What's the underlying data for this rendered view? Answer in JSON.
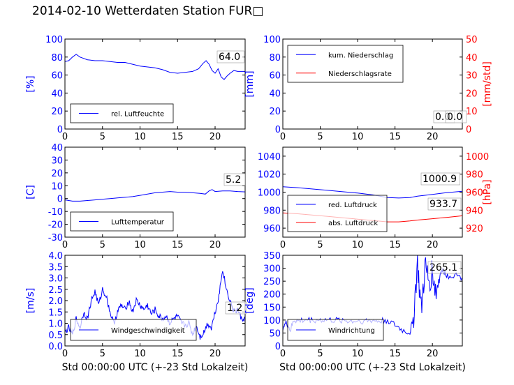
{
  "title": "2014-02-10 Wetterdaten Station FUR□",
  "colors": {
    "primary": "#0000ff",
    "secondary": "#ff0000",
    "axis": "#000000"
  },
  "chart_data": [
    {
      "type": "line",
      "xlim": [
        0,
        24
      ],
      "xticks": [
        0,
        5,
        10,
        15,
        20
      ],
      "ylabel": "[%]",
      "ylim": [
        0,
        100
      ],
      "yticks": [
        0,
        20,
        40,
        60,
        80,
        100
      ],
      "latest_label": "64.0",
      "legend": {
        "placement": "lower-left"
      },
      "series": [
        {
          "name": "rel. Luftfeuchte",
          "color": "#0000ff",
          "points": [
            [
              0,
              75
            ],
            [
              0.5,
              76
            ],
            [
              1,
              80
            ],
            [
              1.5,
              83
            ],
            [
              2,
              80
            ],
            [
              3,
              77
            ],
            [
              4,
              76
            ],
            [
              5,
              76
            ],
            [
              6,
              75
            ],
            [
              7,
              74
            ],
            [
              8,
              74
            ],
            [
              9,
              72
            ],
            [
              10,
              70
            ],
            [
              11,
              69
            ],
            [
              12,
              68
            ],
            [
              13,
              66
            ],
            [
              14,
              63
            ],
            [
              15,
              62
            ],
            [
              16,
              63
            ],
            [
              17,
              64
            ],
            [
              17.8,
              67
            ],
            [
              18.4,
              73
            ],
            [
              18.8,
              76
            ],
            [
              19.2,
              72
            ],
            [
              19.6,
              65
            ],
            [
              20,
              62
            ],
            [
              20.4,
              67
            ],
            [
              20.8,
              58
            ],
            [
              21.2,
              55
            ],
            [
              21.6,
              59
            ],
            [
              22,
              62
            ],
            [
              22.5,
              65
            ],
            [
              23,
              64
            ],
            [
              24,
              64
            ]
          ]
        }
      ]
    },
    {
      "type": "line",
      "xlim": [
        0,
        24
      ],
      "xticks": [
        0,
        5,
        10,
        15,
        20
      ],
      "ylabel": "[mm]",
      "ylim": [
        0,
        100
      ],
      "yticks": [
        0,
        20,
        40,
        60,
        80,
        100
      ],
      "ylabel_right": "[mm/std]",
      "ylim_right": [
        0,
        50
      ],
      "yticks_right": [
        0,
        10,
        20,
        30,
        40,
        50
      ],
      "latest_labels": [
        "0.0",
        "0.0"
      ],
      "legend": {
        "placement": "upper-left"
      },
      "series": [
        {
          "name": "kum. Niederschlag",
          "color": "#0000ff",
          "axis": "left",
          "points": [
            [
              0,
              0
            ],
            [
              24,
              0
            ]
          ]
        },
        {
          "name": "Niederschlagsrate",
          "color": "#ff0000",
          "axis": "right",
          "points": [
            [
              0,
              0
            ],
            [
              24,
              0
            ]
          ]
        }
      ]
    },
    {
      "type": "line",
      "xlim": [
        0,
        24
      ],
      "xticks": [
        0,
        5,
        10,
        15,
        20
      ],
      "ylabel": "[C]",
      "ylim": [
        -30,
        40
      ],
      "yticks": [
        -30,
        -20,
        -10,
        0,
        10,
        20,
        30,
        40
      ],
      "latest_label": "5.2",
      "legend": {
        "placement": "lower-left"
      },
      "series": [
        {
          "name": "Lufttemperatur",
          "color": "#0000ff",
          "points": [
            [
              0,
              -1
            ],
            [
              0.5,
              -1.5
            ],
            [
              1,
              -2
            ],
            [
              2,
              -2
            ],
            [
              3,
              -1.5
            ],
            [
              4,
              -1
            ],
            [
              5,
              -0.5
            ],
            [
              6,
              0
            ],
            [
              7,
              0.5
            ],
            [
              8,
              1
            ],
            [
              9,
              1.5
            ],
            [
              10,
              2.5
            ],
            [
              11,
              3.5
            ],
            [
              12,
              4.5
            ],
            [
              13,
              5
            ],
            [
              14,
              5.5
            ],
            [
              15,
              5
            ],
            [
              16,
              5
            ],
            [
              17,
              4.5
            ],
            [
              18,
              4
            ],
            [
              18.7,
              3.5
            ],
            [
              19.2,
              6
            ],
            [
              19.6,
              7
            ],
            [
              20,
              5.5
            ],
            [
              21,
              6
            ],
            [
              22,
              6
            ],
            [
              23,
              5.5
            ],
            [
              24,
              5.2
            ]
          ]
        }
      ]
    },
    {
      "type": "line",
      "xlim": [
        0,
        24
      ],
      "xticks": [
        0,
        5,
        10,
        15,
        20
      ],
      "ylim": [
        950,
        1050
      ],
      "yticks": [
        960,
        980,
        1000,
        1020,
        1040
      ],
      "ylabel_right": "[hPa]",
      "ylim_right": [
        910,
        1010
      ],
      "yticks_right": [
        920,
        940,
        960,
        980,
        1000
      ],
      "latest_labels": [
        "1000.9",
        "933.7"
      ],
      "legend": {
        "placement": "lower-left"
      },
      "series": [
        {
          "name": "red. Luftdruck",
          "color": "#0000ff",
          "axis": "left",
          "points": [
            [
              0,
              1006
            ],
            [
              2,
              1005
            ],
            [
              4,
              1003.5
            ],
            [
              6,
              1002
            ],
            [
              8,
              1000.5
            ],
            [
              10,
              999
            ],
            [
              12,
              997
            ],
            [
              14,
              994
            ],
            [
              15.5,
              993.5
            ],
            [
              17,
              994
            ],
            [
              18,
              995.5
            ],
            [
              20,
              997.5
            ],
            [
              22,
              999.5
            ],
            [
              24,
              1000.9
            ]
          ]
        },
        {
          "name": "abs. Luftdruck",
          "color": "#ff0000",
          "axis": "right",
          "points": [
            [
              0,
              937
            ],
            [
              2,
              936
            ],
            [
              4,
              934.5
            ],
            [
              6,
              933
            ],
            [
              8,
              931.5
            ],
            [
              10,
              930
            ],
            [
              12,
              928.5
            ],
            [
              14,
              927
            ],
            [
              15.5,
              927
            ],
            [
              17,
              928
            ],
            [
              18,
              929
            ],
            [
              20,
              930.5
            ],
            [
              22,
              932
            ],
            [
              24,
              933.7
            ]
          ]
        }
      ]
    },
    {
      "type": "line",
      "xlim": [
        0,
        24
      ],
      "xticks": [
        0,
        5,
        10,
        15,
        20
      ],
      "xlabel": "Std 00:00:00 UTC (+-23 Std Lokalzeit)",
      "ylabel": "[m/s]",
      "ylim": [
        0,
        4
      ],
      "yticks": [
        0.0,
        0.5,
        1.0,
        1.5,
        2.0,
        2.5,
        3.0,
        3.5,
        4.0
      ],
      "latest_label": "1.2",
      "legend": {
        "placement": "lower-center"
      },
      "series": [
        {
          "name": "Windgeschwindigkeit",
          "color": "#0000ff",
          "noisy": true,
          "points": [
            [
              0,
              0.6
            ],
            [
              0.5,
              0.8
            ],
            [
              1,
              0.5
            ],
            [
              1.5,
              1.2
            ],
            [
              2,
              0.8
            ],
            [
              2.5,
              1.5
            ],
            [
              3,
              1.2
            ],
            [
              3.5,
              2.0
            ],
            [
              4,
              2.4
            ],
            [
              4.5,
              1.8
            ],
            [
              5,
              2.5
            ],
            [
              5.5,
              2.2
            ],
            [
              6,
              1.5
            ],
            [
              6.5,
              1.0
            ],
            [
              7,
              1.5
            ],
            [
              7.5,
              1.8
            ],
            [
              8,
              1.6
            ],
            [
              8.5,
              2.0
            ],
            [
              9,
              1.5
            ],
            [
              9.5,
              2.0
            ],
            [
              10,
              1.8
            ],
            [
              10.5,
              1.6
            ],
            [
              11,
              1.8
            ],
            [
              11.5,
              1.4
            ],
            [
              12,
              1.6
            ],
            [
              12.5,
              1.3
            ],
            [
              13,
              1.2
            ],
            [
              13.5,
              1.3
            ],
            [
              14,
              1.0
            ],
            [
              14.5,
              1.2
            ],
            [
              15,
              1.3
            ],
            [
              15.5,
              1.0
            ],
            [
              16,
              0.9
            ],
            [
              16.5,
              1.0
            ],
            [
              17,
              0.5
            ],
            [
              17.5,
              0.9
            ],
            [
              18,
              0.4
            ],
            [
              18.5,
              0.6
            ],
            [
              19,
              1.0
            ],
            [
              19.5,
              0.8
            ],
            [
              20,
              1.5
            ],
            [
              20.5,
              2.2
            ],
            [
              21,
              3.4
            ],
            [
              21.5,
              2.5
            ],
            [
              22,
              2.0
            ],
            [
              22.5,
              1.5
            ],
            [
              23,
              1.6
            ],
            [
              23.5,
              1.2
            ],
            [
              24,
              1.2
            ]
          ]
        }
      ]
    },
    {
      "type": "line",
      "xlim": [
        0,
        24
      ],
      "xticks": [
        0,
        5,
        10,
        15,
        20
      ],
      "xlabel": "Std 00:00:00 UTC (+-23 Std Lokalzeit)",
      "ylabel": "[deg]",
      "ylim": [
        0,
        350
      ],
      "yticks": [
        0,
        50,
        100,
        150,
        200,
        250,
        300,
        350
      ],
      "latest_label": "265.1",
      "legend": {
        "placement": "lower-left"
      },
      "series": [
        {
          "name": "Windrichtung",
          "color": "#0000ff",
          "noisy": true,
          "points": [
            [
              0,
              70
            ],
            [
              0.5,
              90
            ],
            [
              1,
              60
            ],
            [
              1.5,
              100
            ],
            [
              2,
              95
            ],
            [
              3,
              100
            ],
            [
              4,
              100
            ],
            [
              5,
              100
            ],
            [
              6,
              100
            ],
            [
              7,
              98
            ],
            [
              8,
              100
            ],
            [
              9,
              95
            ],
            [
              10,
              97
            ],
            [
              11,
              96
            ],
            [
              12,
              98
            ],
            [
              13,
              95
            ],
            [
              14,
              100
            ],
            [
              15,
              80
            ],
            [
              16,
              60
            ],
            [
              17,
              50
            ],
            [
              17.5,
              120
            ],
            [
              18,
              320
            ],
            [
              18.5,
              130
            ],
            [
              19,
              300
            ],
            [
              19.5,
              250
            ],
            [
              20,
              290
            ],
            [
              20.5,
              200
            ],
            [
              21,
              280
            ],
            [
              21.5,
              290
            ],
            [
              22,
              270
            ],
            [
              23,
              275
            ],
            [
              24,
              265
            ]
          ]
        }
      ]
    }
  ]
}
